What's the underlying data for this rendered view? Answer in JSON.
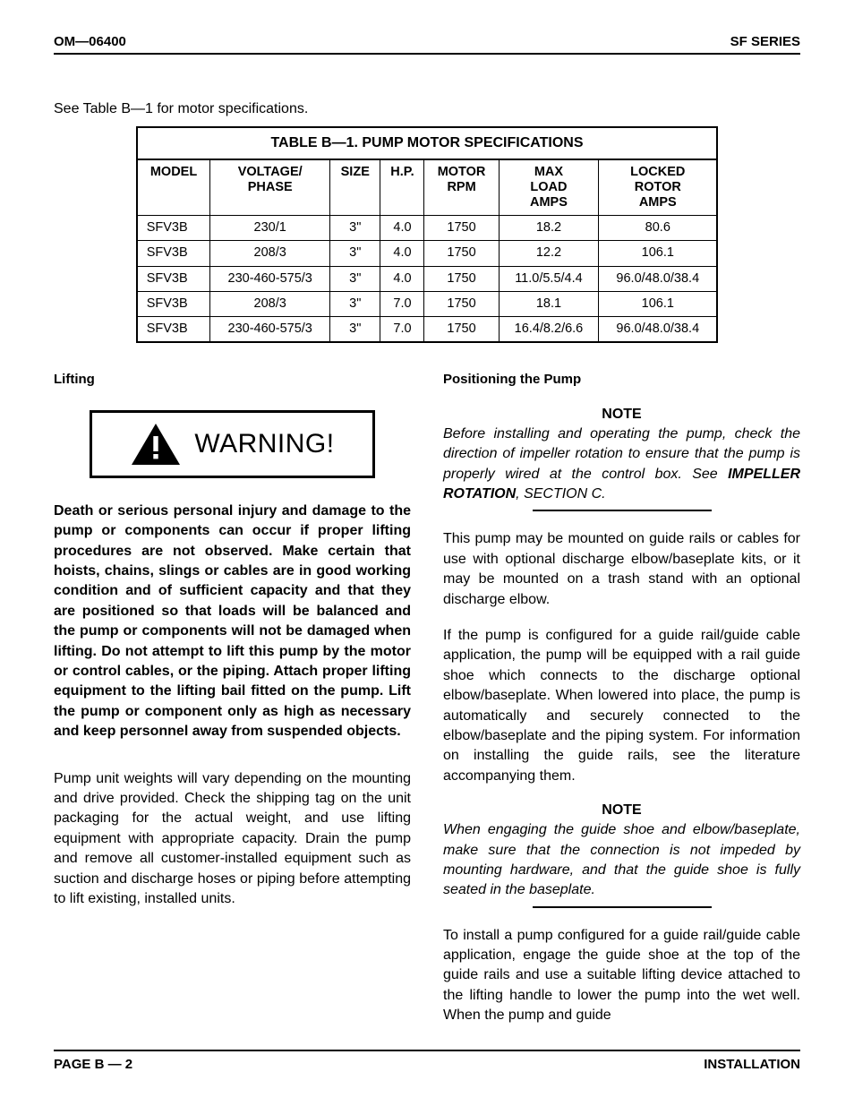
{
  "header": {
    "left": "OM—06400",
    "right": "SF SERIES"
  },
  "intro": "See Table B—1 for motor specifications.",
  "table": {
    "title": "TABLE B—1.  PUMP MOTOR SPECIFICATIONS",
    "columns": [
      "MODEL",
      "VOLTAGE/ PHASE",
      "SIZE",
      "H.P.",
      "MOTOR RPM",
      "MAX LOAD AMPS",
      "LOCKED ROTOR AMPS"
    ],
    "rows": [
      [
        "SFV3B",
        "230/1",
        "3\"",
        "4.0",
        "1750",
        "18.2",
        "80.6"
      ],
      [
        "SFV3B",
        "208/3",
        "3\"",
        "4.0",
        "1750",
        "12.2",
        "106.1"
      ],
      [
        "SFV3B",
        "230-460-575/3",
        "3\"",
        "4.0",
        "1750",
        "11.0/5.5/4.4",
        "96.0/48.0/38.4"
      ],
      [
        "SFV3B",
        "208/3",
        "3\"",
        "7.0",
        "1750",
        "18.1",
        "106.1"
      ],
      [
        "SFV3B",
        "230-460-575/3",
        "3\"",
        "7.0",
        "1750",
        "16.4/8.2/6.6",
        "96.0/48.0/38.4"
      ]
    ]
  },
  "left_col": {
    "subhead": "Lifting",
    "warning_label": "WARNING!",
    "warning_body": "Death or serious personal injury and damage to the pump or components can occur if proper lifting procedures are not observed. Make certain that hoists, chains, slings or cables are in good working condition and of sufficient capacity and that they are positioned so that loads will be balanced and the pump or components will not be damaged when lifting. Do not attempt to lift this pump by the motor or control cables, or the piping. Attach proper lifting equipment to the lifting bail fitted on the pump. Lift the pump or component only as high as necessary and keep personnel away from suspended objects.",
    "para1": "Pump unit weights will vary depending on the mounting and drive provided. Check the shipping tag on the unit packaging for the actual weight, and use lifting equipment with appropriate capacity. Drain the pump and remove all customer-installed equipment such as suction and discharge hoses or piping before attempting to lift existing, installed units."
  },
  "right_col": {
    "subhead": "Positioning the Pump",
    "note1_h": "NOTE",
    "note1_body_a": "Before installing and operating the pump, check the direction of impeller rotation to ensure that the pump is properly wired at the control box. See ",
    "note1_body_b": "IMPELLER ROTATION",
    "note1_body_c": ", SECTION C.",
    "para1": "This pump may be mounted on guide rails or cables for use with optional discharge elbow/baseplate kits, or it may be mounted on a trash stand with an optional discharge elbow.",
    "para2": "If the pump is configured for a guide rail/guide cable application, the pump will be equipped with a rail guide shoe which connects to the discharge optional elbow/baseplate. When lowered into place, the pump is automatically and securely connected to the  elbow/baseplate and the piping system. For information on installing the guide rails, see the literature accompanying them.",
    "note2_h": "NOTE",
    "note2_body": "When engaging the guide shoe and elbow/baseplate, make sure that the connection is not impeded by mounting hardware, and that the guide shoe is fully seated in the baseplate.",
    "para3": "To install a pump configured for a guide rail/guide cable application, engage the guide shoe at the top of the guide rails and use a suitable lifting device attached to the lifting handle to lower the pump into the wet well. When the pump and guide"
  },
  "footer": {
    "left": "PAGE B — 2",
    "right": "INSTALLATION"
  }
}
